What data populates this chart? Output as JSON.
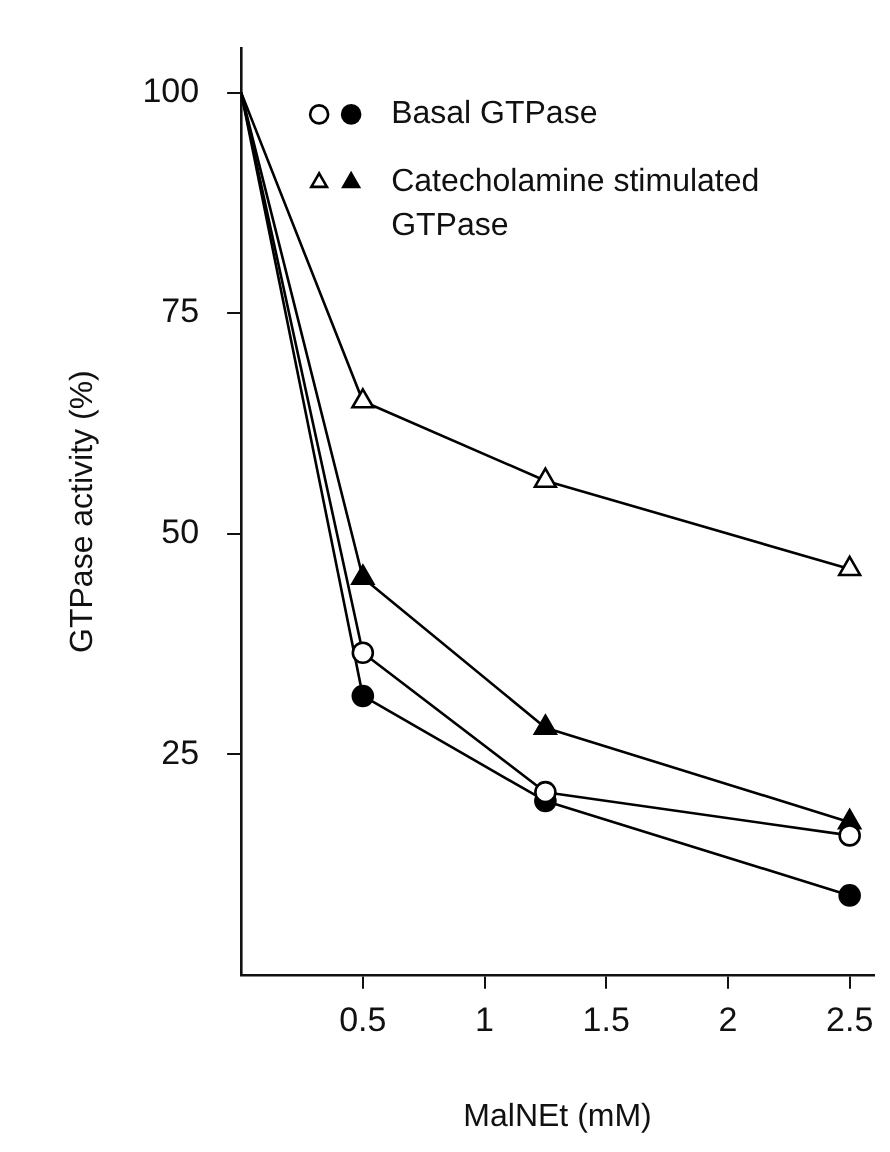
{
  "chart_data": {
    "type": "line",
    "xlabel": "MalNEt (mM)",
    "ylabel": "GTPase activity (%)",
    "x": [
      0,
      0.5,
      1.25,
      2.5
    ],
    "series": [
      {
        "name": "Basal GTPase",
        "color": "#000000",
        "marker": "circle",
        "values": [
          100,
          31.6,
          19.7,
          9
        ]
      },
      {
        "color": "#000000",
        "marker": "circle",
        "values": [
          100,
          36.5,
          20.7,
          15.8
        ]
      },
      {
        "name": "Catecholamine stimulated GTPase",
        "color": "#000000",
        "marker": "triangle",
        "values": [
          100,
          45,
          28,
          17.3
        ]
      },
      {
        "color": "#000000",
        "marker": "triangle",
        "values": [
          100,
          65,
          56,
          46
        ]
      }
    ],
    "xlim": [
      0,
      2.6
    ],
    "xticks": [
      0.5,
      1,
      1.5,
      2,
      2.5
    ],
    "ylim": [
      0,
      105
    ],
    "yticks": [
      25,
      50,
      75,
      100
    ],
    "grid": false,
    "legend": "top right",
    "line_style": "solid"
  }
}
